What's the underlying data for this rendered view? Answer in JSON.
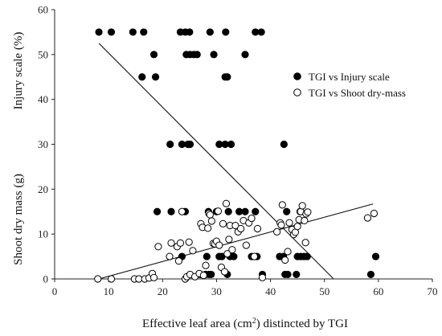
{
  "chart_data": {
    "type": "scatter",
    "title": "",
    "xlabel_parts": [
      "Effective leaf area (cm",
      "2",
      ") distincted by TGI"
    ],
    "ylabel_left": "Injury scale (%)",
    "ylabel_right": "Shoot dry mass (g)",
    "xlim": [
      0,
      70
    ],
    "ylim": [
      0,
      60
    ],
    "x_ticks": [
      0,
      10,
      20,
      30,
      40,
      50,
      60,
      70
    ],
    "y_ticks": [
      0,
      10,
      20,
      30,
      40,
      50,
      60
    ],
    "legend_position": "right-middle",
    "series": [
      {
        "name": "TGI vs Injury scale",
        "marker": "filled-circle",
        "color": "#000000",
        "points": [
          [
            8.2,
            55
          ],
          [
            10.5,
            55
          ],
          [
            14.5,
            55
          ],
          [
            16.5,
            55
          ],
          [
            23.3,
            55
          ],
          [
            24.2,
            55
          ],
          [
            25.0,
            55
          ],
          [
            28.8,
            55
          ],
          [
            31.7,
            55
          ],
          [
            37.2,
            55
          ],
          [
            38.3,
            55
          ],
          [
            18.4,
            50
          ],
          [
            24.4,
            50
          ],
          [
            25.1,
            50
          ],
          [
            25.8,
            50
          ],
          [
            26.4,
            50
          ],
          [
            29.5,
            50
          ],
          [
            35.3,
            50
          ],
          [
            16.2,
            45
          ],
          [
            18.7,
            45
          ],
          [
            31.6,
            45
          ],
          [
            32.0,
            45
          ],
          [
            21.4,
            30
          ],
          [
            23.6,
            30
          ],
          [
            24.7,
            30
          ],
          [
            25.1,
            30
          ],
          [
            30.5,
            30
          ],
          [
            31.6,
            30
          ],
          [
            32.7,
            30
          ],
          [
            42.5,
            30
          ],
          [
            19.0,
            15
          ],
          [
            21.6,
            15
          ],
          [
            24.2,
            15
          ],
          [
            28.5,
            15
          ],
          [
            30.0,
            15
          ],
          [
            32.2,
            15
          ],
          [
            34.2,
            15
          ],
          [
            35.3,
            15
          ],
          [
            37.2,
            15
          ],
          [
            43.0,
            15
          ],
          [
            45.5,
            15
          ],
          [
            23.6,
            5
          ],
          [
            28.2,
            5
          ],
          [
            30.5,
            5
          ],
          [
            31.0,
            5
          ],
          [
            32.5,
            5
          ],
          [
            33.2,
            5
          ],
          [
            36.5,
            5
          ],
          [
            37.5,
            5
          ],
          [
            41.7,
            5
          ],
          [
            42.4,
            5
          ],
          [
            45.0,
            5
          ],
          [
            45.6,
            5
          ],
          [
            46.2,
            5
          ],
          [
            46.8,
            5
          ],
          [
            59.5,
            5
          ],
          [
            27.0,
            1
          ],
          [
            28.0,
            1
          ],
          [
            28.6,
            1
          ],
          [
            29.0,
            1
          ],
          [
            32.0,
            1
          ],
          [
            38.5,
            1
          ],
          [
            42.7,
            1
          ],
          [
            43.2,
            1
          ],
          [
            44.8,
            1
          ],
          [
            58.6,
            1
          ]
        ]
      },
      {
        "name": "TGI vs Shoot dry-mass",
        "marker": "open-circle",
        "color": "#000000",
        "points": [
          [
            8.0,
            0
          ],
          [
            10.5,
            0
          ],
          [
            14.8,
            0
          ],
          [
            15.6,
            0
          ],
          [
            16.7,
            0
          ],
          [
            17.5,
            0.2
          ],
          [
            18.1,
            1.2
          ],
          [
            18.4,
            0.3
          ],
          [
            19.2,
            7.2
          ],
          [
            21.3,
            5.0
          ],
          [
            21.6,
            8.0
          ],
          [
            22.7,
            7.2
          ],
          [
            23.0,
            4.0
          ],
          [
            23.3,
            8.0
          ],
          [
            23.6,
            15.0
          ],
          [
            24.2,
            0
          ],
          [
            24.5,
            0.5
          ],
          [
            24.9,
            8.2
          ],
          [
            25.1,
            1.0
          ],
          [
            25.6,
            6.3
          ],
          [
            26.0,
            0.5
          ],
          [
            26.8,
            1.2
          ],
          [
            27.1,
            12.3
          ],
          [
            27.4,
            11.5
          ],
          [
            27.6,
            0.8
          ],
          [
            28.0,
            3.0
          ],
          [
            28.4,
            11.3
          ],
          [
            28.6,
            14.6
          ],
          [
            28.8,
            14.3
          ],
          [
            29.1,
            12.9
          ],
          [
            29.4,
            7.9
          ],
          [
            29.7,
            7.8
          ],
          [
            30.0,
            8.4
          ],
          [
            30.3,
            15.1
          ],
          [
            30.5,
            7.5
          ],
          [
            30.9,
            2.6
          ],
          [
            31.2,
            12.3
          ],
          [
            31.5,
            1.6
          ],
          [
            31.8,
            16.8
          ],
          [
            32.0,
            5.6
          ],
          [
            32.3,
            8.8
          ],
          [
            32.5,
            11.9
          ],
          [
            32.9,
            6.5
          ],
          [
            33.5,
            11.9
          ],
          [
            34.0,
            10.5
          ],
          [
            34.5,
            11.2
          ],
          [
            35.0,
            13.0
          ],
          [
            35.5,
            7.5
          ],
          [
            36.0,
            12.5
          ],
          [
            36.5,
            13.5
          ],
          [
            37.0,
            5.0
          ],
          [
            37.6,
            11.2
          ],
          [
            38.5,
            0.3
          ],
          [
            41.2,
            10.5
          ],
          [
            41.8,
            12.5
          ],
          [
            42.0,
            12.0
          ],
          [
            42.2,
            16.5
          ],
          [
            42.7,
            4.2
          ],
          [
            43.2,
            6.1
          ],
          [
            43.5,
            12.5
          ],
          [
            44.0,
            11.0
          ],
          [
            44.3,
            9.9
          ],
          [
            44.6,
            10.4
          ],
          [
            45.0,
            11.7
          ],
          [
            45.3,
            13.2
          ],
          [
            45.6,
            15.0
          ],
          [
            45.9,
            16.3
          ],
          [
            46.3,
            13.0
          ],
          [
            46.6,
            14.5
          ],
          [
            46.9,
            14.9
          ],
          [
            46.5,
            8.1
          ],
          [
            58.0,
            13.6
          ],
          [
            59.2,
            14.6
          ]
        ]
      }
    ],
    "trendlines": [
      {
        "series": "TGI vs Injury scale",
        "from": [
          8.2,
          52.5
        ],
        "to": [
          51.7,
          0
        ]
      },
      {
        "series": "TGI vs Shoot dry-mass",
        "from": [
          8.2,
          0
        ],
        "to": [
          59.0,
          16.7
        ]
      }
    ]
  }
}
